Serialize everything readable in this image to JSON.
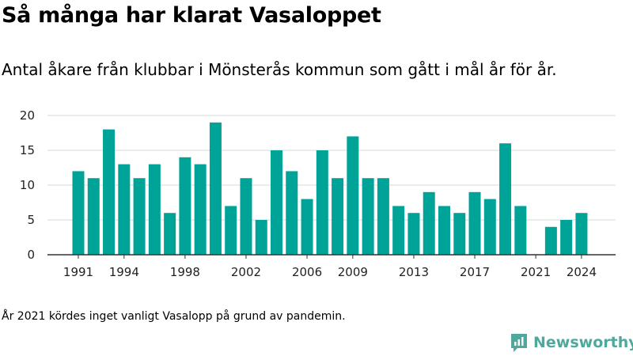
{
  "header": {
    "title": "Så många har klarat Vasaloppet",
    "subtitle": "Antal åkare från klubbar i Mönsterås kommun som gått i mål år för år."
  },
  "footnote": "År 2021 kördes inget vanligt Vasalopp på grund av pandemin.",
  "brand": {
    "name": "Newsworthy",
    "color": "#4fa89c",
    "icon": "newsworthy-logo-icon"
  },
  "colors": {
    "bar": "#00a398",
    "grid": "#d9d9d9",
    "axis": "#333333"
  },
  "chart_data": {
    "type": "bar",
    "categories": [
      1991,
      1992,
      1993,
      1994,
      1995,
      1996,
      1997,
      1998,
      1999,
      2000,
      2001,
      2002,
      2003,
      2004,
      2005,
      2006,
      2007,
      2008,
      2009,
      2010,
      2011,
      2012,
      2013,
      2014,
      2015,
      2016,
      2017,
      2018,
      2019,
      2020,
      2021,
      2022,
      2023,
      2024
    ],
    "values": [
      12,
      11,
      18,
      13,
      11,
      13,
      6,
      14,
      13,
      19,
      7,
      11,
      5,
      15,
      12,
      8,
      15,
      11,
      17,
      11,
      11,
      7,
      6,
      9,
      7,
      6,
      9,
      8,
      16,
      7,
      0,
      4,
      5,
      6
    ],
    "x_tick_labels": [
      "1991",
      "1994",
      "1998",
      "2002",
      "2006",
      "2009",
      "2013",
      "2017",
      "2021",
      "2024"
    ],
    "y_tick_labels": [
      "0",
      "5",
      "10",
      "15",
      "20"
    ],
    "ylim": [
      0,
      20
    ],
    "grid": true,
    "xlabel": "",
    "ylabel": ""
  }
}
